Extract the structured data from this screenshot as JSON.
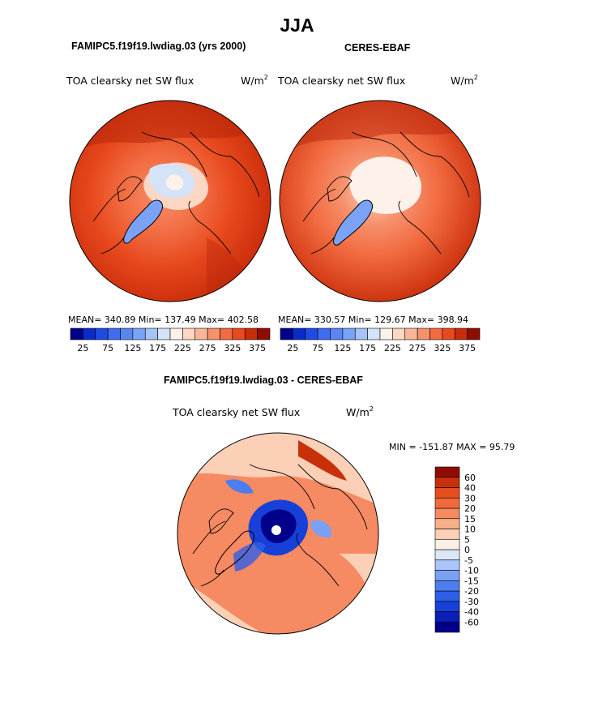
{
  "page": {
    "title": "JJA"
  },
  "left_panel": {
    "title": "FAMIPC5.f19f19.lwdiag.03 (yrs 2000)",
    "field": "TOA clearsky net SW flux",
    "units": "W/m",
    "units_exp": "2",
    "stats": "MEAN= 340.89   Min= 137.49   Max= 402.58"
  },
  "right_panel": {
    "title": "CERES-EBAF",
    "field": "TOA clearsky net SW flux",
    "units": "W/m",
    "units_exp": "2",
    "stats": "MEAN= 330.57   Min= 129.67   Max= 398.94"
  },
  "diff_panel": {
    "title": "FAMIPC5.f19f19.lwdiag.03 - CERES-EBAF",
    "field": "TOA clearsky net SW flux",
    "units": "W/m",
    "units_exp": "2",
    "minmax": "MIN = -151.87 MAX =  95.79"
  },
  "chart_data": [
    {
      "type": "heatmap",
      "projection": "north-polar-stereographic",
      "title": "FAMIPC5.f19f19.lwdiag.03 (yrs 2000)",
      "field": "TOA clearsky net SW flux",
      "units": "W/m2",
      "mean": 340.89,
      "min": 137.49,
      "max": 402.58,
      "colorbar": {
        "orientation": "horizontal",
        "levels": [
          25,
          50,
          75,
          100,
          125,
          150,
          175,
          200,
          225,
          250,
          275,
          300,
          325,
          350,
          375
        ],
        "tick_labels": [
          "25",
          "75",
          "125",
          "175",
          "225",
          "275",
          "325",
          "375"
        ],
        "colors": [
          "#00008a",
          "#0a2bc8",
          "#1e4be2",
          "#3f6cf0",
          "#5a86f4",
          "#7aa2f7",
          "#a6c3f7",
          "#d4e3f8",
          "#fdf1ea",
          "#fcd7c3",
          "#fab699",
          "#f6916c",
          "#f26b41",
          "#e84a1e",
          "#c92c0a",
          "#8f0c00"
        ]
      },
      "regions": [
        {
          "region": "Greenland",
          "approx_value": 150
        },
        {
          "region": "central Arctic Ocean",
          "approx_value": 210
        },
        {
          "region": "Arctic coasts and high latitudes",
          "approx_value": 320
        },
        {
          "region": "mid latitudes (outer disk)",
          "approx_value": 375
        }
      ]
    },
    {
      "type": "heatmap",
      "projection": "north-polar-stereographic",
      "title": "CERES-EBAF",
      "field": "TOA clearsky net SW flux",
      "units": "W/m2",
      "mean": 330.57,
      "min": 129.67,
      "max": 398.94,
      "colorbar": {
        "orientation": "horizontal",
        "levels": [
          25,
          50,
          75,
          100,
          125,
          150,
          175,
          200,
          225,
          250,
          275,
          300,
          325,
          350,
          375
        ],
        "tick_labels": [
          "25",
          "75",
          "125",
          "175",
          "225",
          "275",
          "325",
          "375"
        ],
        "colors": [
          "#00008a",
          "#0a2bc8",
          "#1e4be2",
          "#3f6cf0",
          "#5a86f4",
          "#7aa2f7",
          "#a6c3f7",
          "#d4e3f8",
          "#fdf1ea",
          "#fcd7c3",
          "#fab699",
          "#f6916c",
          "#f26b41",
          "#e84a1e",
          "#c92c0a",
          "#8f0c00"
        ]
      },
      "regions": [
        {
          "region": "Greenland",
          "approx_value": 150
        },
        {
          "region": "central Arctic Ocean",
          "approx_value": 235
        },
        {
          "region": "Arctic coasts and high latitudes",
          "approx_value": 300
        },
        {
          "region": "mid latitudes (outer disk)",
          "approx_value": 365
        }
      ]
    },
    {
      "type": "heatmap",
      "projection": "north-polar-stereographic",
      "title": "FAMIPC5.f19f19.lwdiag.03 - CERES-EBAF",
      "field": "TOA clearsky net SW flux",
      "units": "W/m2",
      "min": -151.87,
      "max": 95.79,
      "colorbar": {
        "orientation": "vertical",
        "levels": [
          -60,
          -40,
          -30,
          -20,
          -15,
          -10,
          -5,
          0,
          5,
          10,
          15,
          20,
          30,
          40,
          60
        ],
        "tick_labels": [
          "-60",
          "-40",
          "-30",
          "-20",
          "-15",
          "-10",
          "-5",
          "0",
          "5",
          "10",
          "15",
          "20",
          "30",
          "40",
          "60"
        ],
        "colors": [
          "#00008a",
          "#0a1fb8",
          "#1740d8",
          "#2f5ee8",
          "#4d7ef0",
          "#7aa0f4",
          "#a9c4f6",
          "#dbe8f8",
          "#fcefe4",
          "#fcd0b6",
          "#f9ae8a",
          "#f68a62",
          "#f26a3c",
          "#e84d1e",
          "#c8300a",
          "#8f0c00"
        ]
      },
      "regions": [
        {
          "region": "central Arctic Ocean",
          "approx_value": -40
        },
        {
          "region": "Greenland",
          "approx_value": 5
        },
        {
          "region": "Eurasia high latitudes",
          "approx_value": 20
        },
        {
          "region": "North Atlantic",
          "approx_value": 20
        },
        {
          "region": "Canadian Archipelago",
          "approx_value": -20
        }
      ]
    }
  ]
}
